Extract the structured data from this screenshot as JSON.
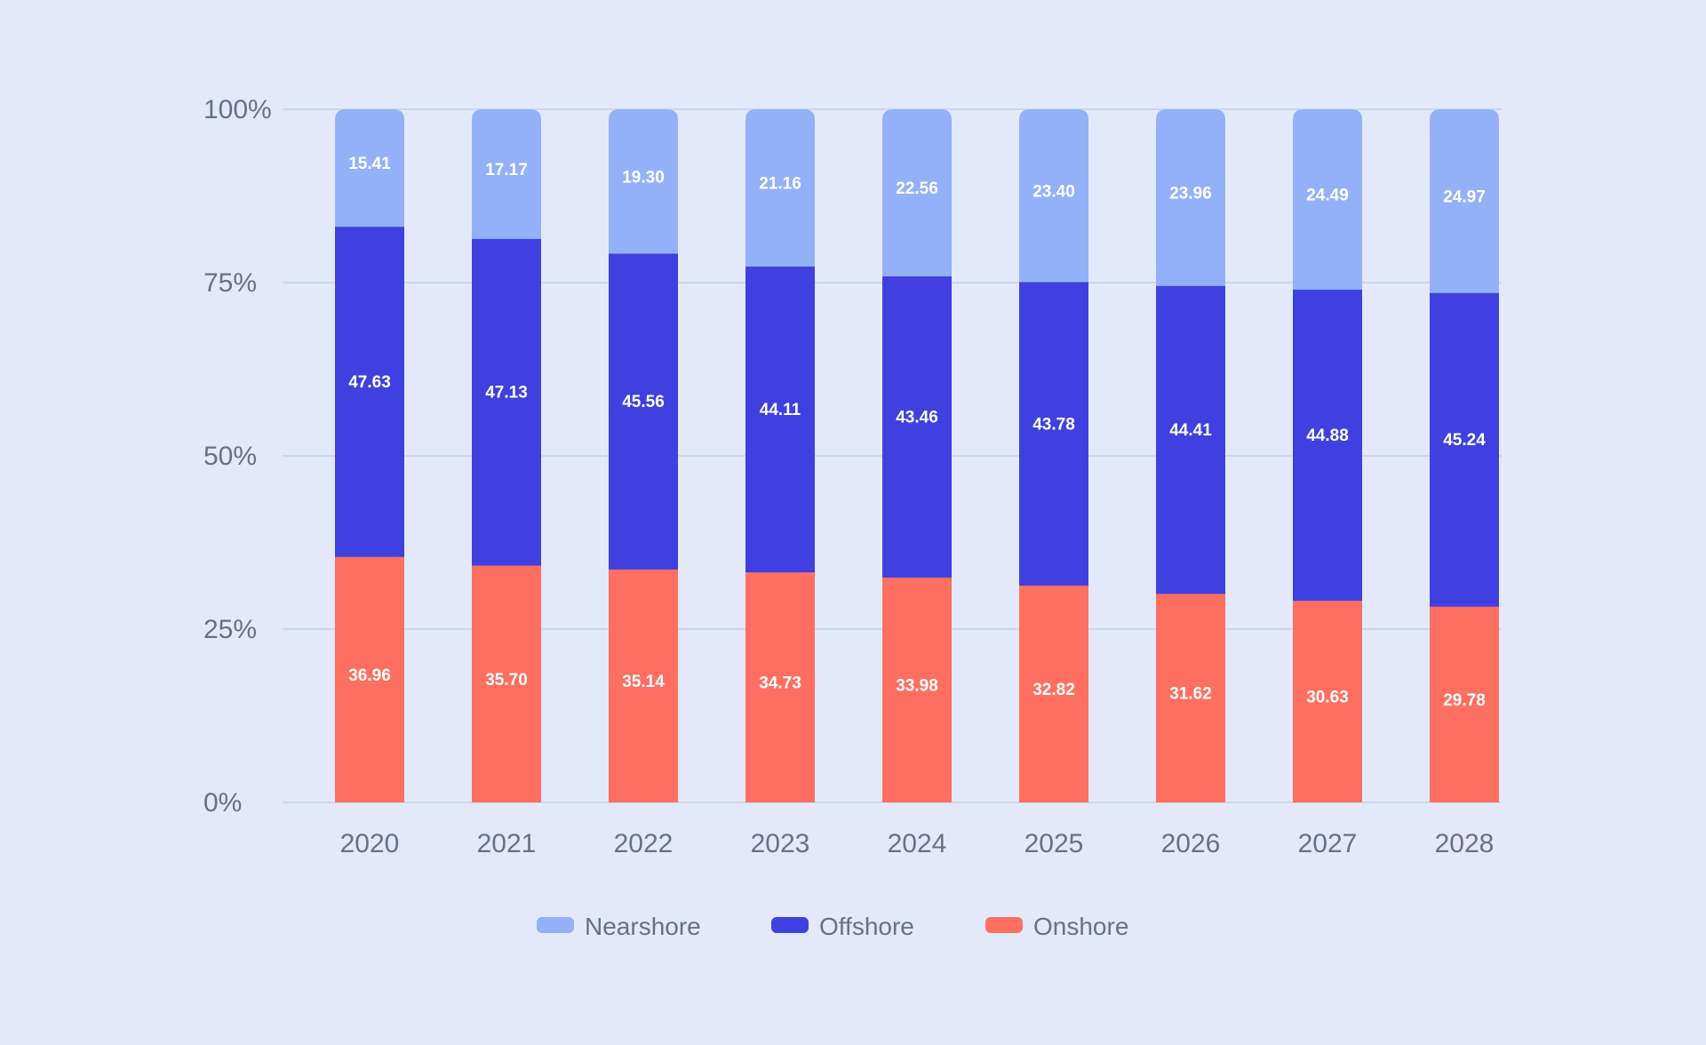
{
  "chart_data": {
    "type": "bar",
    "stacked": true,
    "percent_stacked": true,
    "categories": [
      "2020",
      "2021",
      "2022",
      "2023",
      "2024",
      "2025",
      "2026",
      "2027",
      "2028"
    ],
    "series": [
      {
        "name": "Onshore",
        "color": "#ff6f61",
        "values": [
          36.96,
          35.7,
          35.14,
          34.73,
          33.98,
          32.82,
          31.62,
          30.63,
          29.78
        ],
        "labels": [
          "36.96",
          "35.70",
          "35.14",
          "34.73",
          "33.98",
          "32.82",
          "31.62",
          "30.63",
          "29.78"
        ]
      },
      {
        "name": "Offshore",
        "color": "#4040e0",
        "values": [
          47.63,
          47.13,
          45.56,
          44.11,
          43.46,
          43.78,
          44.41,
          44.88,
          45.24
        ],
        "labels": [
          "47.63",
          "47.13",
          "45.56",
          "44.11",
          "43.46",
          "43.78",
          "44.41",
          "44.88",
          "45.24"
        ]
      },
      {
        "name": "Nearshore",
        "color": "#92b1f9",
        "values": [
          15.41,
          17.17,
          19.3,
          21.16,
          22.56,
          23.4,
          23.96,
          24.49,
          24.97
        ],
        "labels": [
          "15.41",
          "17.17",
          "19.30",
          "21.16",
          "22.56",
          "23.40",
          "23.96",
          "24.49",
          "24.97"
        ]
      }
    ],
    "yticks": [
      "0%",
      "25%",
      "50%",
      "75%",
      "100%"
    ],
    "ylim": [
      0,
      100
    ],
    "grid": true,
    "legend_position": "bottom-center",
    "legend_order": [
      "Nearshore",
      "Offshore",
      "Onshore"
    ],
    "title": "",
    "xlabel": "",
    "ylabel": ""
  }
}
